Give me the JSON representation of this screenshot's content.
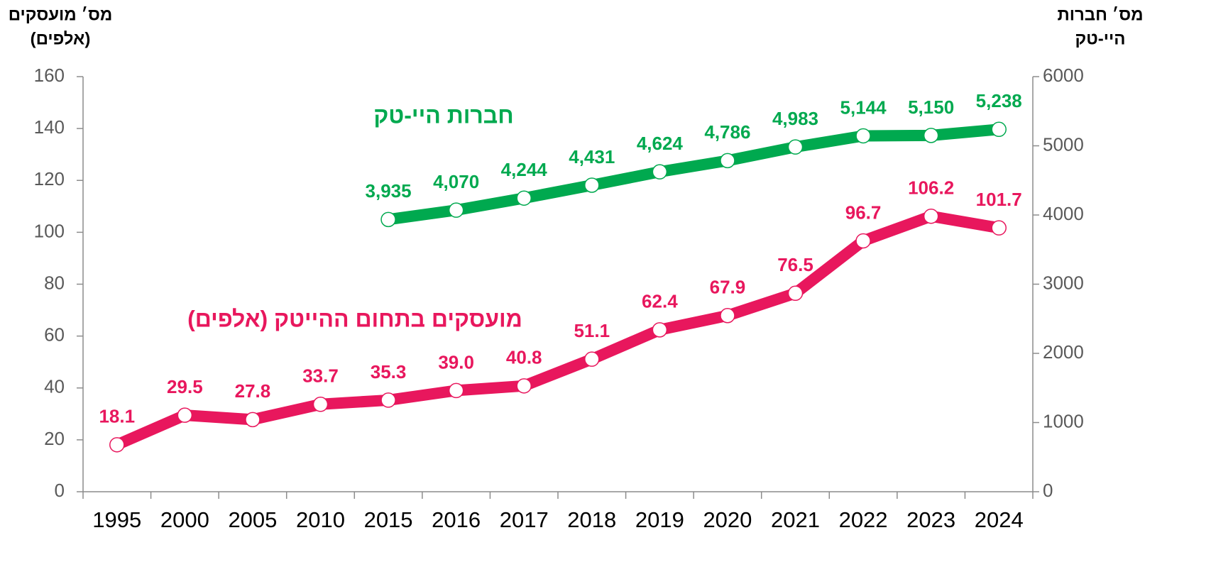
{
  "chart_data": {
    "type": "line",
    "categories": [
      "1995",
      "2000",
      "2005",
      "2010",
      "2015",
      "2016",
      "2017",
      "2018",
      "2019",
      "2020",
      "2021",
      "2022",
      "2023",
      "2024"
    ],
    "y_label": [
      "מס׳ מועסקים",
      "(אלפים)"
    ],
    "y2_label": [
      "מס׳ חברות",
      "היי-טק"
    ],
    "ylim": [
      0,
      160
    ],
    "yticks": [
      0,
      20,
      40,
      60,
      80,
      100,
      120,
      140,
      160
    ],
    "y2lim": [
      0,
      6000
    ],
    "y2ticks": [
      0,
      1000,
      2000,
      3000,
      4000,
      5000,
      6000
    ],
    "series": [
      {
        "name": "מועסקים בתחום ההייטק (אלפים)",
        "color": "#e8175d",
        "axis": "y",
        "values": [
          18.1,
          29.5,
          27.8,
          33.7,
          35.3,
          39.0,
          40.8,
          51.1,
          62.4,
          67.9,
          76.5,
          96.7,
          106.2,
          101.7
        ],
        "value_labels": [
          "18.1",
          "29.5",
          "27.8",
          "33.7",
          "35.3",
          "39.0",
          "40.8",
          "51.1",
          "62.4",
          "67.9",
          "76.5",
          "96.7",
          "106.2",
          "101.7"
        ]
      },
      {
        "name": "חברות היי-טק",
        "color": "#00a94f",
        "axis": "y2",
        "values": [
          null,
          null,
          null,
          null,
          3935,
          4070,
          4244,
          4431,
          4624,
          4786,
          4983,
          5144,
          5150,
          5238
        ],
        "value_labels": [
          null,
          null,
          null,
          null,
          "3,935",
          "4,070",
          "4,244",
          "4,431",
          "4,624",
          "4,786",
          "4,983",
          "5,144",
          "5,150",
          "5,238"
        ]
      }
    ]
  }
}
